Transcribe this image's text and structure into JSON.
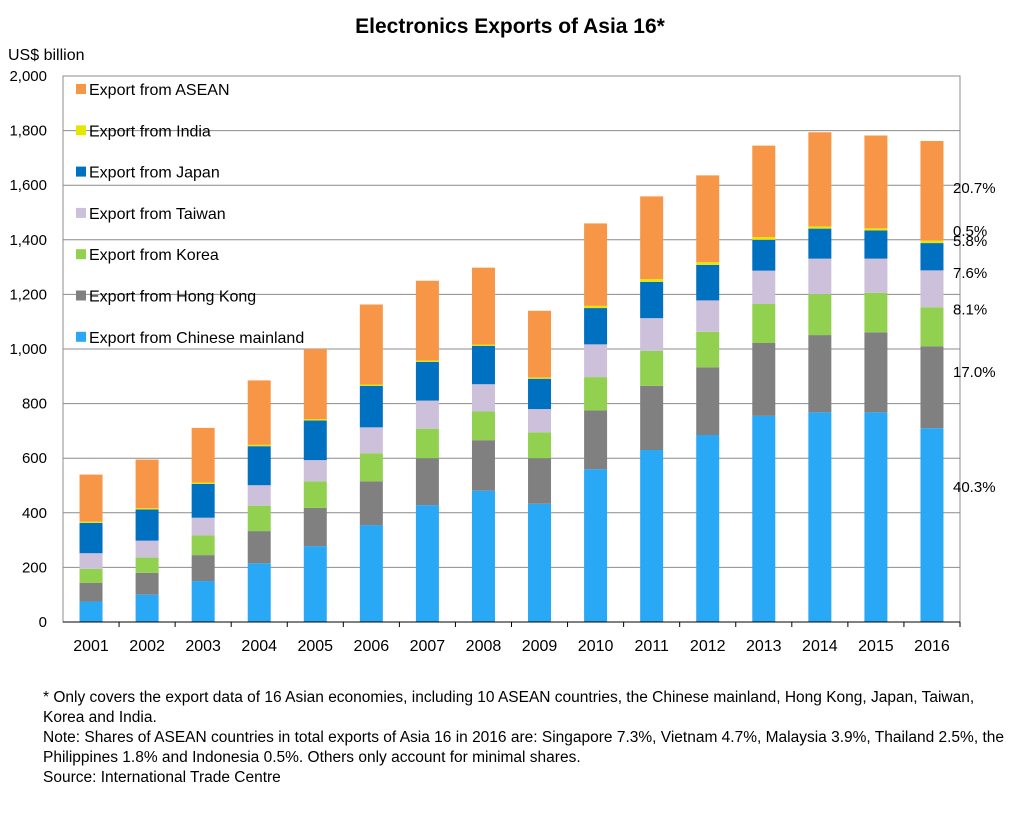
{
  "chart_data": {
    "type": "bar",
    "stacked": true,
    "title": "Electronics Exports of Asia 16*",
    "ylabel": "US$ billion",
    "ylim": [
      0,
      2000
    ],
    "yticks": [
      "0",
      "200",
      "400",
      "600",
      "800",
      "1,000",
      "1,200",
      "1,400",
      "1,600",
      "1,800",
      "2,000"
    ],
    "grid": true,
    "legend_position": "top-left",
    "categories": [
      "2001",
      "2002",
      "2003",
      "2004",
      "2005",
      "2006",
      "2007",
      "2008",
      "2009",
      "2010",
      "2011",
      "2012",
      "2013",
      "2014",
      "2015",
      "2016"
    ],
    "series": [
      {
        "name": "Export from Chinese mainland",
        "color": "#29a8f5",
        "values": [
          75,
          100,
          150,
          215,
          278,
          355,
          428,
          481,
          433,
          560,
          630,
          685,
          755,
          768,
          768,
          710
        ]
      },
      {
        "name": "Export from Hong Kong",
        "color": "#808080",
        "values": [
          68,
          80,
          95,
          118,
          140,
          160,
          172,
          185,
          167,
          215,
          235,
          248,
          267,
          283,
          293,
          300
        ]
      },
      {
        "name": "Export from Korea",
        "color": "#92d050",
        "values": [
          52,
          56,
          72,
          93,
          97,
          103,
          108,
          105,
          95,
          122,
          128,
          130,
          143,
          150,
          145,
          143
        ]
      },
      {
        "name": "Export from Taiwan",
        "color": "#ccc0da",
        "values": [
          57,
          62,
          65,
          75,
          78,
          95,
          103,
          100,
          85,
          120,
          120,
          115,
          122,
          130,
          125,
          135
        ]
      },
      {
        "name": "Export from Japan",
        "color": "#0070c0",
        "values": [
          111,
          114,
          124,
          143,
          145,
          152,
          142,
          140,
          111,
          133,
          133,
          130,
          113,
          110,
          103,
          100
        ]
      },
      {
        "name": "Export from India",
        "color": "#e6e600",
        "values": [
          5,
          5,
          5,
          5,
          5,
          5,
          5,
          5,
          5,
          8,
          10,
          10,
          10,
          8,
          8,
          9
        ]
      },
      {
        "name": "Export from ASEAN",
        "color": "#f79646",
        "values": [
          172,
          178,
          200,
          236,
          257,
          293,
          292,
          282,
          244,
          302,
          303,
          318,
          335,
          345,
          340,
          365
        ]
      }
    ],
    "annotations": [
      {
        "label": "20.7%",
        "y": 1590
      },
      {
        "label": "0.5%",
        "y": 1433
      },
      {
        "label": "5.8%",
        "y": 1395
      },
      {
        "label": "7.6%",
        "y": 1278
      },
      {
        "label": "8.1%",
        "y": 1145
      },
      {
        "label": "17.0%",
        "y": 915
      },
      {
        "label": "40.3%",
        "y": 495
      }
    ]
  },
  "notes": {
    "footnote": "* Only covers the export data of 16 Asian economies, including 10 ASEAN countries, the Chinese mainland, Hong Kong, Japan, Taiwan, Korea and India.",
    "note": "Note: Shares of ASEAN countries in total exports of Asia 16 in 2016 are: Singapore 7.3%, Vietnam 4.7%, Malaysia 3.9%, Thailand 2.5%, the Philippines 1.8% and Indonesia 0.5%. Others only account for minimal shares.",
    "source": "Source: International Trade Centre"
  }
}
